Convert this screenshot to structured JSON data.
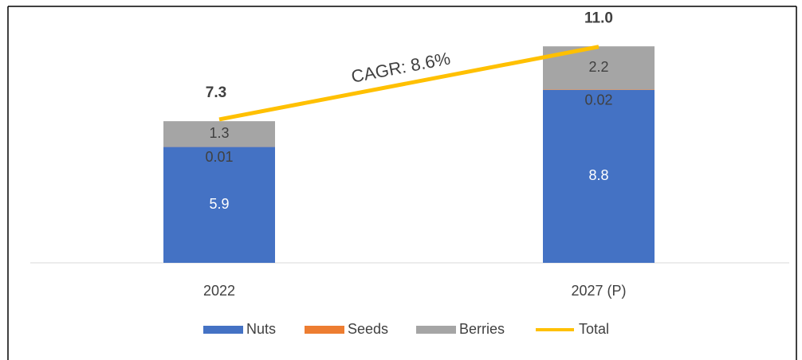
{
  "chart_data": {
    "type": "stacked_bar_line",
    "categories": [
      "2022",
      "2027 (P)"
    ],
    "series": [
      {
        "name": "Nuts",
        "color": "#4472c4",
        "values": [
          5.9,
          8.8
        ]
      },
      {
        "name": "Seeds",
        "color": "#ed7d31",
        "values": [
          0.01,
          0.02
        ]
      },
      {
        "name": "Berries",
        "color": "#a5a5a5",
        "values": [
          1.3,
          2.2
        ]
      },
      {
        "name": "Total",
        "color": "#ffc000",
        "values": [
          7.3,
          11
        ],
        "value_labels": [
          "7.3",
          "11.0"
        ]
      }
    ],
    "annotation": "CAGR: 8.6%",
    "ylim": [
      0,
      12
    ],
    "legend": "bottom"
  }
}
